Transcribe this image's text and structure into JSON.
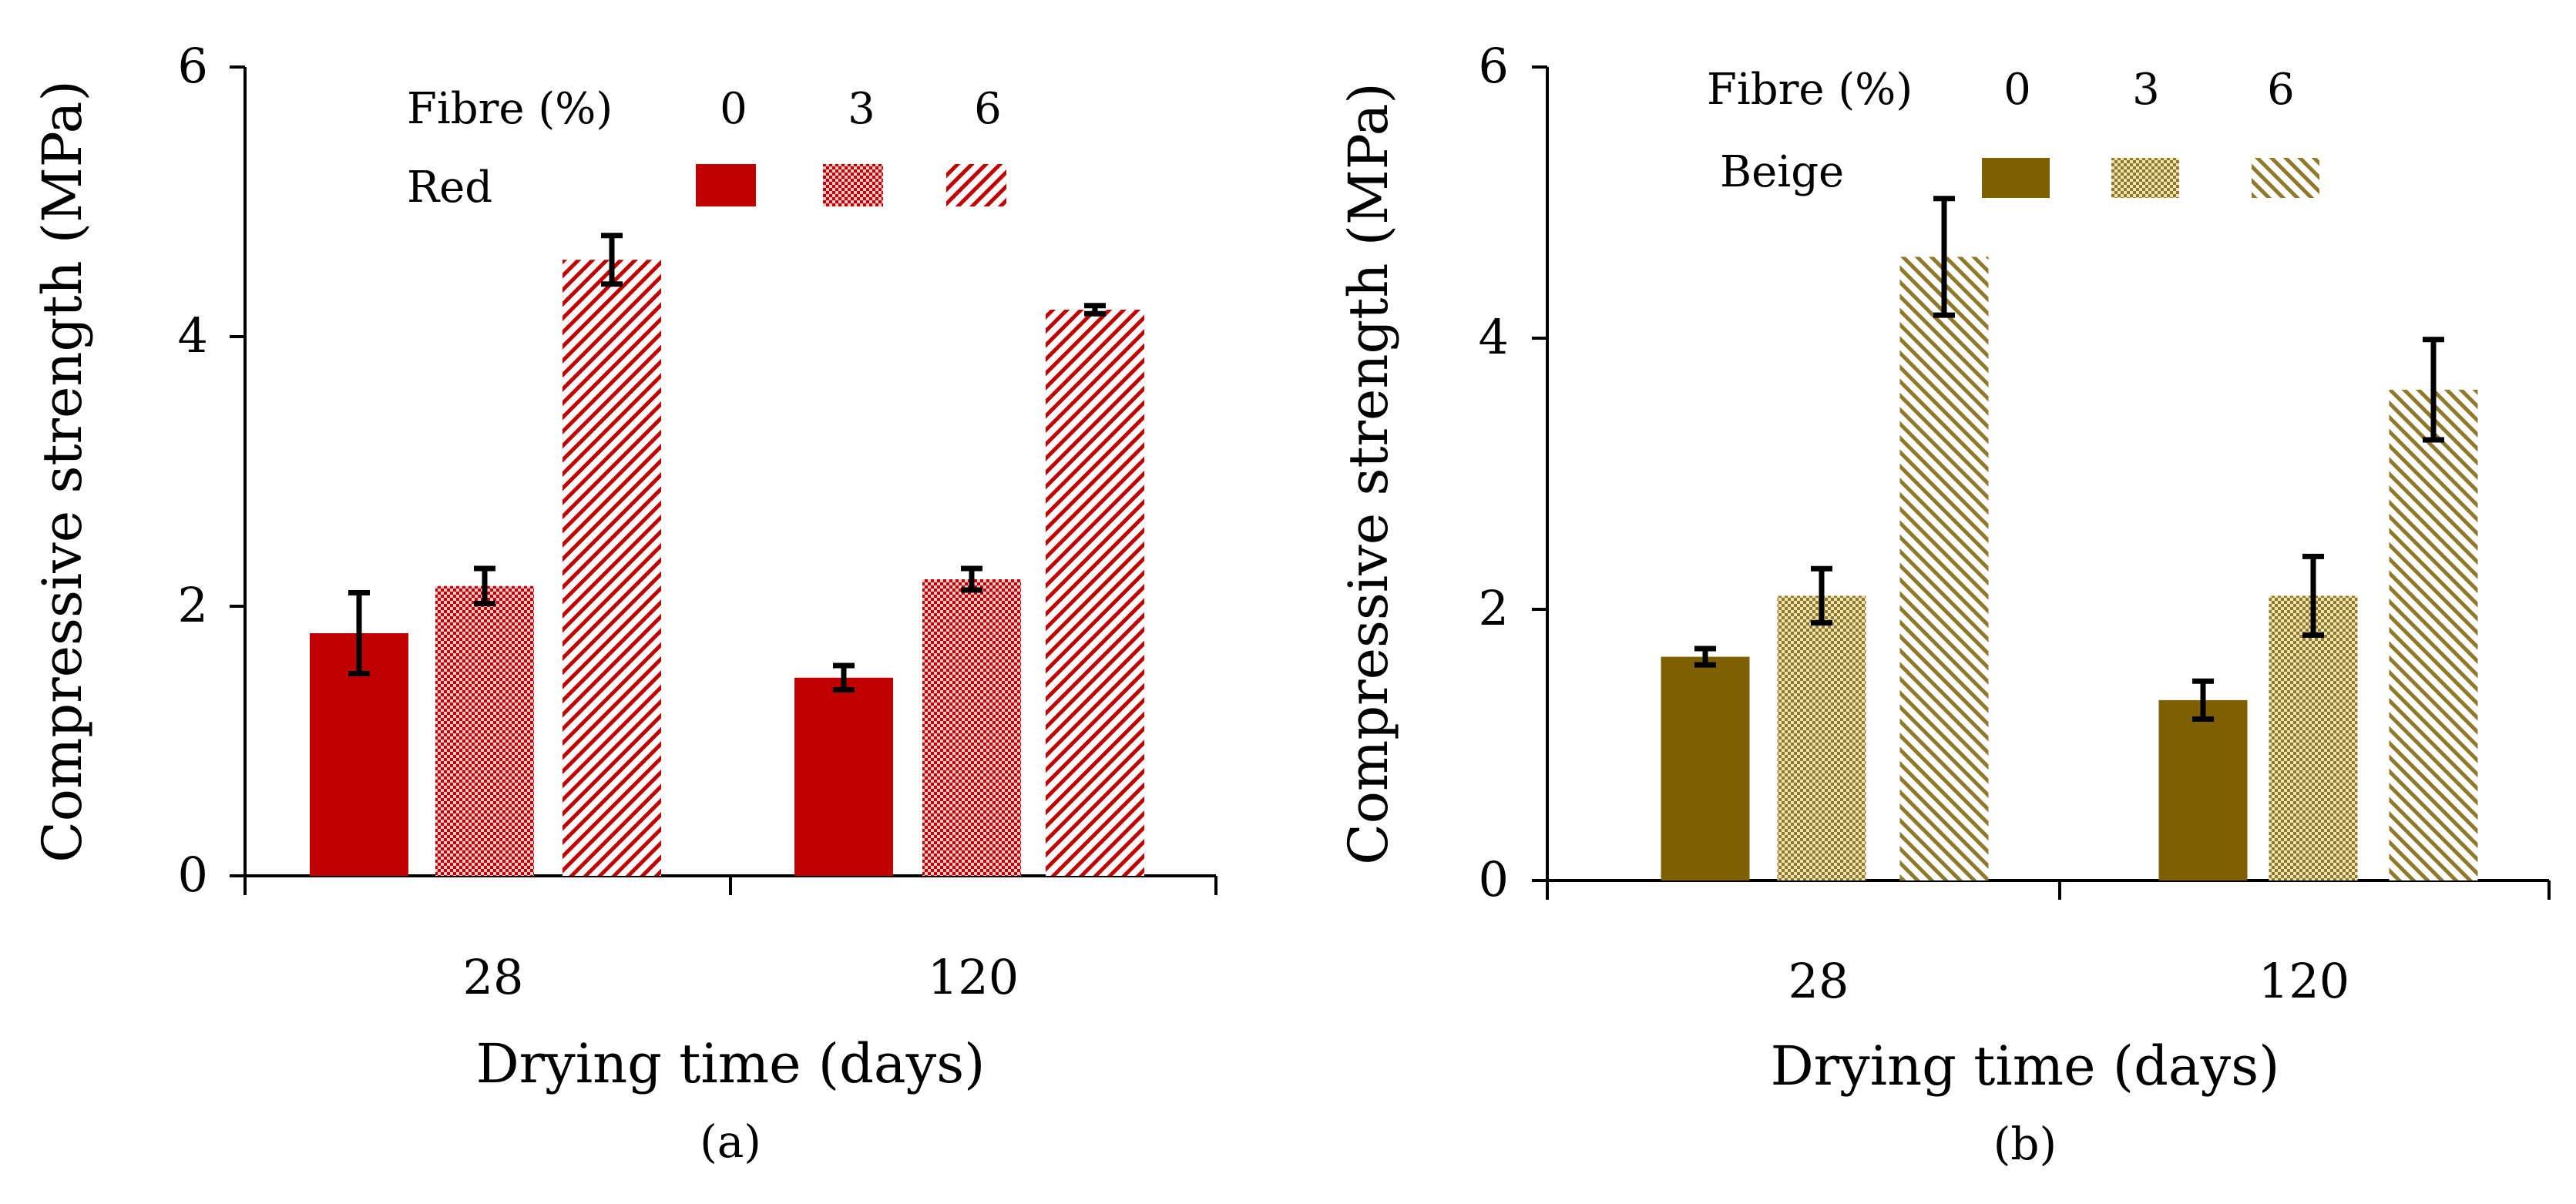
{
  "chart_data": [
    {
      "type": "bar",
      "panel_label": "(a)",
      "xlabel": "Drying time (days)",
      "ylabel": "Compressive strength (MPa)",
      "ylim": [
        0,
        6
      ],
      "yticks": [
        "0",
        "2",
        "4",
        "6"
      ],
      "categories": [
        "28",
        "120"
      ],
      "legend": {
        "title": "Fibre (%)",
        "group_label": "Red",
        "placement": "top-center"
      },
      "series": [
        {
          "name": "0",
          "values": [
            1.8,
            1.47
          ],
          "errors": [
            0.3,
            0.09
          ],
          "color": "#c00000",
          "pattern": "solid"
        },
        {
          "name": "3",
          "values": [
            2.15,
            2.2
          ],
          "errors": [
            0.13,
            0.08
          ],
          "color": "#c00000",
          "pattern": "grid"
        },
        {
          "name": "6",
          "values": [
            4.57,
            4.2
          ],
          "errors": [
            0.18,
            0.03
          ],
          "color": "#c00000",
          "pattern": "diagonal"
        }
      ]
    },
    {
      "type": "bar",
      "panel_label": "(b)",
      "xlabel": "Drying time (days)",
      "ylabel": "Compressive strength (MPa)",
      "ylim": [
        0,
        6
      ],
      "yticks": [
        "0",
        "2",
        "4",
        "6"
      ],
      "categories": [
        "28",
        "120"
      ],
      "legend": {
        "title": "Fibre (%)",
        "group_label": "Beige",
        "placement": "top-left"
      },
      "series": [
        {
          "name": "0",
          "values": [
            1.65,
            1.33
          ],
          "errors": [
            0.06,
            0.14
          ],
          "color": "#7f6000",
          "pattern": "solid"
        },
        {
          "name": "3",
          "values": [
            2.1,
            2.1
          ],
          "errors": [
            0.2,
            0.29
          ],
          "color": "#7f6000",
          "pattern": "grid"
        },
        {
          "name": "6",
          "values": [
            4.6,
            3.62
          ],
          "errors": [
            0.43,
            0.37
          ],
          "color": "#7f6000",
          "pattern": "diagonal"
        }
      ]
    }
  ]
}
